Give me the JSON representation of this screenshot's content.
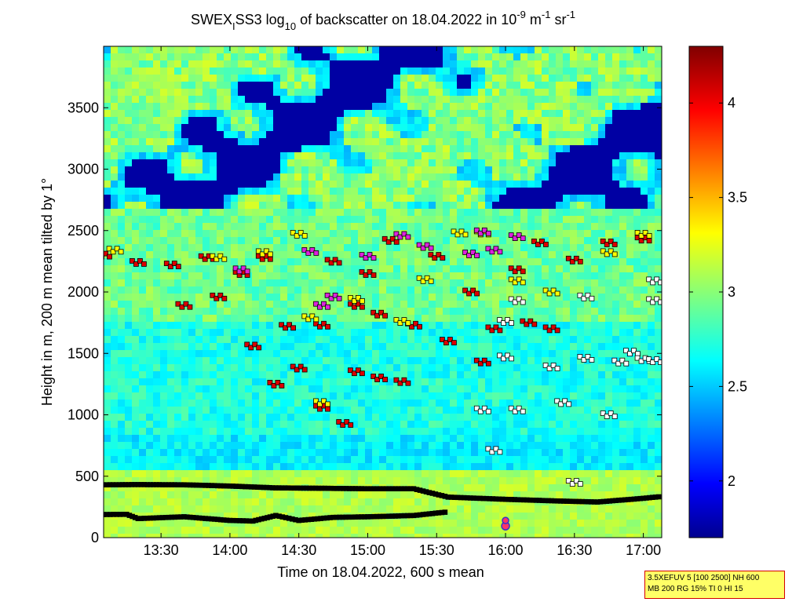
{
  "chart_data": {
    "type": "heatmap",
    "title_parts": {
      "prefix": "SWEX",
      "sub1": "I",
      "mid": "SS3 log",
      "sub2": "10",
      "after": " of backscatter on 18.04.2022 in 10",
      "sup1": "-9",
      "unit1": " m",
      "sup2": "-1",
      "unit2": " sr",
      "sup3": "-1"
    },
    "xlabel": "Time on 18.04.2022, 600 s mean",
    "ylabel": "Height in m, 200 m mean tilted by 1°",
    "xlim": [
      "13:05",
      "17:08"
    ],
    "ylim": [
      0,
      4000
    ],
    "x_ticks": [
      "13:30",
      "14:00",
      "14:30",
      "15:00",
      "15:30",
      "16:00",
      "16:30",
      "17:00"
    ],
    "y_ticks": [
      0,
      500,
      1000,
      1500,
      2000,
      2500,
      3000,
      3500
    ],
    "colorbar": {
      "range": [
        1.7,
        4.3
      ],
      "ticks": [
        "2",
        "2.5",
        "3",
        "3.5",
        "4"
      ],
      "colormap": "jet"
    },
    "series": [
      {
        "marker_color": "#000000",
        "points": [
          [
            "13:05",
            430
          ],
          [
            "13:20",
            432
          ],
          [
            "13:40",
            430
          ],
          [
            "14:00",
            420
          ],
          [
            "14:20",
            405
          ],
          [
            "14:40",
            402
          ],
          [
            "15:00",
            398
          ],
          [
            "15:20",
            398
          ],
          [
            "15:35",
            330
          ],
          [
            "16:00",
            312
          ],
          [
            "16:20",
            300
          ],
          [
            "16:40",
            290
          ],
          [
            "17:00",
            320
          ],
          [
            "17:08",
            335
          ]
        ]
      },
      {
        "marker_color": "#000000",
        "points": [
          [
            "13:05",
            188
          ],
          [
            "13:15",
            190
          ],
          [
            "13:20",
            155
          ],
          [
            "13:40",
            170
          ],
          [
            "14:00",
            140
          ],
          [
            "14:10",
            135
          ],
          [
            "14:20",
            180
          ],
          [
            "14:30",
            140
          ],
          [
            "14:45",
            165
          ],
          [
            "15:00",
            170
          ],
          [
            "15:20",
            180
          ],
          [
            "15:35",
            210
          ]
        ]
      },
      {
        "marker_color": "#dd0000",
        "points": [
          [
            "13:05",
            2300
          ],
          [
            "13:20",
            2240
          ],
          [
            "13:35",
            2220
          ],
          [
            "13:50",
            2280
          ],
          [
            "14:05",
            2150
          ],
          [
            "14:15",
            2280
          ],
          [
            "14:45",
            2250
          ],
          [
            "15:00",
            2150
          ],
          [
            "15:10",
            2420
          ],
          [
            "15:30",
            2290
          ],
          [
            "15:45",
            2000
          ],
          [
            "16:05",
            2180
          ],
          [
            "16:15",
            2400
          ],
          [
            "16:30",
            2260
          ],
          [
            "16:45",
            2400
          ],
          [
            "17:00",
            2430
          ],
          [
            "13:40",
            1890
          ],
          [
            "13:55",
            1960
          ],
          [
            "14:10",
            1560
          ],
          [
            "14:25",
            1720
          ],
          [
            "14:40",
            1730
          ],
          [
            "14:55",
            1890
          ],
          [
            "15:05",
            1820
          ],
          [
            "15:20",
            1730
          ],
          [
            "15:35",
            1600
          ],
          [
            "15:55",
            1700
          ],
          [
            "16:10",
            1750
          ],
          [
            "16:20",
            1700
          ],
          [
            "14:20",
            1250
          ],
          [
            "14:40",
            1060
          ],
          [
            "15:05",
            1300
          ],
          [
            "15:15",
            1270
          ],
          [
            "14:30",
            1380
          ],
          [
            "14:55",
            1350
          ],
          [
            "15:50",
            1430
          ],
          [
            "14:50",
            930
          ]
        ]
      },
      {
        "marker_color": "#ffff00",
        "points": [
          [
            "13:10",
            2340
          ],
          [
            "13:55",
            2280
          ],
          [
            "14:15",
            2320
          ],
          [
            "14:35",
            1790
          ],
          [
            "14:55",
            1940
          ],
          [
            "15:15",
            1760
          ],
          [
            "15:25",
            2100
          ],
          [
            "15:40",
            2480
          ],
          [
            "15:50",
            2480
          ],
          [
            "16:05",
            2090
          ],
          [
            "16:20",
            2000
          ],
          [
            "16:45",
            2320
          ],
          [
            "17:00",
            2470
          ],
          [
            "14:40",
            1100
          ],
          [
            "14:30",
            2470
          ]
        ]
      },
      {
        "marker_color": "#dd22dd",
        "points": [
          [
            "14:05",
            2180
          ],
          [
            "14:35",
            2330
          ],
          [
            "14:40",
            1890
          ],
          [
            "14:45",
            1960
          ],
          [
            "15:00",
            2290
          ],
          [
            "15:15",
            2460
          ],
          [
            "15:25",
            2370
          ],
          [
            "15:45",
            2310
          ],
          [
            "15:50",
            2490
          ],
          [
            "15:55",
            2340
          ],
          [
            "16:05",
            2450
          ]
        ]
      },
      {
        "marker_color": "#ffffff",
        "points": [
          [
            "16:05",
            1930
          ],
          [
            "16:00",
            1760
          ],
          [
            "16:00",
            1470
          ],
          [
            "16:05",
            1040
          ],
          [
            "16:20",
            1390
          ],
          [
            "16:25",
            1100
          ],
          [
            "16:35",
            1960
          ],
          [
            "16:35",
            1460
          ],
          [
            "16:50",
            1430
          ],
          [
            "16:55",
            1510
          ],
          [
            "17:00",
            1450
          ],
          [
            "17:05",
            2090
          ],
          [
            "17:05",
            1930
          ],
          [
            "15:50",
            1040
          ],
          [
            "15:55",
            710
          ],
          [
            "16:30",
            450
          ],
          [
            "16:45",
            1000
          ],
          [
            "17:05",
            1440
          ]
        ]
      }
    ],
    "highlight_marker": {
      "time": "16:00",
      "height": 95,
      "color": "#cc3399"
    }
  },
  "info_box": {
    "line1": "3.5XEFUV 5 [100 2500] NH 600",
    "line2": "MB 200 RG 15% TI 0 HI 15"
  },
  "colors": {
    "frame": "#000000",
    "infobox_bg": "#ffff66",
    "infobox_border": "#d40000"
  }
}
